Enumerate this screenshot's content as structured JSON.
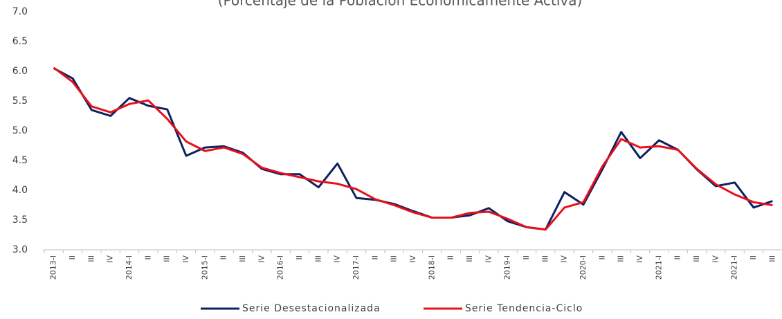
{
  "chart_data": {
    "type": "line",
    "title": "(Porcentaje de la Población Económicamente Activa)",
    "categories": [
      "2013-I",
      "II",
      "III",
      "IV",
      "2014-I",
      "II",
      "III",
      "IV",
      "2015-I",
      "II",
      "III",
      "IV",
      "2016-I",
      "II",
      "III",
      "IV",
      "2017-I",
      "II",
      "III",
      "IV",
      "2018-I",
      "II",
      "III",
      "IV",
      "2019-I",
      "II",
      "III",
      "IV",
      "2020-I",
      "II",
      "III",
      "IV",
      "2021-I",
      "II",
      "III",
      "IV",
      "2021-I",
      "II",
      "III"
    ],
    "series": [
      {
        "name": "Serie Desestacionalizada",
        "color": "#0b2161",
        "values": [
          6.05,
          5.88,
          5.35,
          5.25,
          5.55,
          5.42,
          5.36,
          4.58,
          4.72,
          4.74,
          4.63,
          4.36,
          4.27,
          4.27,
          4.05,
          4.45,
          3.87,
          3.84,
          3.77,
          3.65,
          3.54,
          3.54,
          3.58,
          3.7,
          3.48,
          3.38,
          3.34,
          3.97,
          3.76,
          4.35,
          4.98,
          4.54,
          4.84,
          4.68,
          4.35,
          4.07,
          4.13,
          3.71,
          3.82
        ]
      },
      {
        "name": "Serie Tendencia-Ciclo",
        "color": "#e8101a",
        "values": [
          6.06,
          5.82,
          5.41,
          5.31,
          5.45,
          5.51,
          5.2,
          4.82,
          4.66,
          4.72,
          4.61,
          4.38,
          4.29,
          4.22,
          4.15,
          4.11,
          4.02,
          3.85,
          3.75,
          3.63,
          3.54,
          3.54,
          3.62,
          3.64,
          3.52,
          3.38,
          3.34,
          3.71,
          3.8,
          4.4,
          4.86,
          4.72,
          4.74,
          4.68,
          4.36,
          4.1,
          3.93,
          3.8,
          3.75
        ]
      }
    ],
    "ylim": [
      3.0,
      7.0
    ],
    "yticks": [
      {
        "value": 3,
        "label": "3.0"
      },
      3.5,
      {
        "value": 4,
        "label": "4.0"
      },
      4.5,
      {
        "value": 5,
        "label": "5.0"
      },
      5.5,
      {
        "value": 6,
        "label": "6.0"
      },
      6.5,
      {
        "value": 7,
        "label": "7.0"
      }
    ],
    "grid": false,
    "legend": "bottom"
  }
}
